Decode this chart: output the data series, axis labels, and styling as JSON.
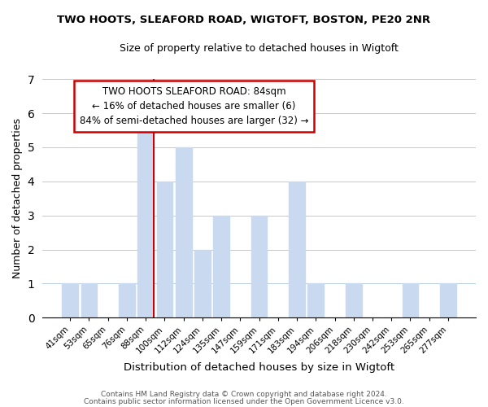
{
  "title": "TWO HOOTS, SLEAFORD ROAD, WIGTOFT, BOSTON, PE20 2NR",
  "subtitle": "Size of property relative to detached houses in Wigtoft",
  "xlabel": "Distribution of detached houses by size in Wigtoft",
  "ylabel": "Number of detached properties",
  "bar_labels": [
    "41sqm",
    "53sqm",
    "65sqm",
    "76sqm",
    "88sqm",
    "100sqm",
    "112sqm",
    "124sqm",
    "135sqm",
    "147sqm",
    "159sqm",
    "171sqm",
    "183sqm",
    "194sqm",
    "206sqm",
    "218sqm",
    "230sqm",
    "242sqm",
    "253sqm",
    "265sqm",
    "277sqm"
  ],
  "bar_values": [
    1,
    1,
    0,
    1,
    6,
    4,
    5,
    2,
    3,
    0,
    3,
    0,
    4,
    1,
    0,
    1,
    0,
    0,
    1,
    0,
    1
  ],
  "highlight_index": 4,
  "bar_color": "#c9d9f0",
  "marker_line_color": "#cc0000",
  "ylim": [
    0,
    7
  ],
  "yticks": [
    0,
    1,
    2,
    3,
    4,
    5,
    6,
    7
  ],
  "annotation_title": "TWO HOOTS SLEAFORD ROAD: 84sqm",
  "annotation_line1": "← 16% of detached houses are smaller (6)",
  "annotation_line2": "84% of semi-detached houses are larger (32) →",
  "footer_line1": "Contains HM Land Registry data © Crown copyright and database right 2024.",
  "footer_line2": "Contains public sector information licensed under the Open Government Licence v3.0.",
  "fig_width": 6.0,
  "fig_height": 5.0,
  "background_color": "#ffffff"
}
